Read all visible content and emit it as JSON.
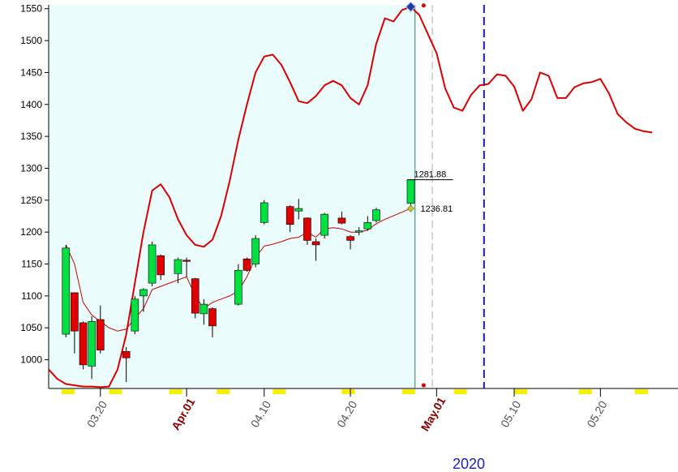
{
  "chart_data": {
    "type": "candlestick",
    "ylim": [
      955,
      1556
    ],
    "yticks": [
      1000,
      1050,
      1100,
      1150,
      1200,
      1250,
      1300,
      1350,
      1400,
      1450,
      1500,
      1550
    ],
    "x_range": [
      -1,
      72
    ],
    "x_ticks": [
      {
        "label": "03.20",
        "x": 5,
        "style": "normal"
      },
      {
        "label": "Apr.01",
        "x": 15,
        "style": "month"
      },
      {
        "label": "04.10",
        "x": 24,
        "style": "normal"
      },
      {
        "label": "04.20",
        "x": 34,
        "style": "normal"
      },
      {
        "label": "May.01",
        "x": 44,
        "style": "month"
      },
      {
        "label": "05.10",
        "x": 53,
        "style": "normal"
      },
      {
        "label": "05.20",
        "x": 63,
        "style": "normal"
      }
    ],
    "year_label": "2020",
    "shaded_range": [
      -1,
      41.5
    ],
    "current_line_x": 41.5,
    "dashed_gray_x": 43.5,
    "dashed_blue_x": 49.5,
    "candles": [
      {
        "x": 1,
        "o": 1040,
        "h": 1180,
        "l": 1035,
        "c": 1175
      },
      {
        "x": 2,
        "o": 1105,
        "h": 1105,
        "l": 1010,
        "c": 1045
      },
      {
        "x": 3,
        "o": 1058,
        "h": 1060,
        "l": 985,
        "c": 992
      },
      {
        "x": 4,
        "o": 990,
        "h": 1068,
        "l": 970,
        "c": 1060
      },
      {
        "x": 5,
        "o": 1063,
        "h": 1085,
        "l": 1010,
        "c": 1015
      },
      {
        "x": 8,
        "o": 1013,
        "h": 1020,
        "l": 965,
        "c": 1003
      },
      {
        "x": 9,
        "o": 1045,
        "h": 1100,
        "l": 1040,
        "c": 1095
      },
      {
        "x": 10,
        "o": 1100,
        "h": 1112,
        "l": 1075,
        "c": 1110
      },
      {
        "x": 11,
        "o": 1120,
        "h": 1185,
        "l": 1115,
        "c": 1180
      },
      {
        "x": 12,
        "o": 1163,
        "h": 1165,
        "l": 1125,
        "c": 1133
      },
      {
        "x": 14,
        "o": 1135,
        "h": 1160,
        "l": 1120,
        "c": 1157
      },
      {
        "x": 15,
        "o": 1156,
        "h": 1160,
        "l": 1130,
        "c": 1155
      },
      {
        "x": 16,
        "o": 1127,
        "h": 1128,
        "l": 1065,
        "c": 1073
      },
      {
        "x": 17,
        "o": 1072,
        "h": 1095,
        "l": 1055,
        "c": 1087
      },
      {
        "x": 18,
        "o": 1080,
        "h": 1082,
        "l": 1035,
        "c": 1053
      },
      {
        "x": 21,
        "o": 1087,
        "h": 1150,
        "l": 1085,
        "c": 1140
      },
      {
        "x": 22,
        "o": 1158,
        "h": 1160,
        "l": 1138,
        "c": 1140
      },
      {
        "x": 23,
        "o": 1150,
        "h": 1195,
        "l": 1145,
        "c": 1190
      },
      {
        "x": 24,
        "o": 1215,
        "h": 1250,
        "l": 1212,
        "c": 1246
      },
      {
        "x": 27,
        "o": 1240,
        "h": 1242,
        "l": 1200,
        "c": 1212
      },
      {
        "x": 28,
        "o": 1233,
        "h": 1252,
        "l": 1220,
        "c": 1237
      },
      {
        "x": 29,
        "o": 1222,
        "h": 1223,
        "l": 1180,
        "c": 1187
      },
      {
        "x": 30,
        "o": 1185,
        "h": 1190,
        "l": 1155,
        "c": 1180
      },
      {
        "x": 31,
        "o": 1195,
        "h": 1230,
        "l": 1190,
        "c": 1228
      },
      {
        "x": 33,
        "o": 1222,
        "h": 1232,
        "l": 1212,
        "c": 1214
      },
      {
        "x": 34,
        "o": 1193,
        "h": 1195,
        "l": 1173,
        "c": 1187
      },
      {
        "x": 35,
        "o": 1200,
        "h": 1208,
        "l": 1195,
        "c": 1202
      },
      {
        "x": 36,
        "o": 1205,
        "h": 1225,
        "l": 1202,
        "c": 1215
      },
      {
        "x": 37,
        "o": 1218,
        "h": 1238,
        "l": 1215,
        "c": 1235
      },
      {
        "x": 41,
        "o": 1245,
        "h": 1283,
        "l": 1242,
        "c": 1282
      }
    ],
    "ma_series": {
      "color": "#cc0000",
      "points": [
        [
          1,
          1180
        ],
        [
          2,
          1150
        ],
        [
          3,
          1090
        ],
        [
          4,
          1070
        ],
        [
          5,
          1060
        ],
        [
          6,
          1050
        ],
        [
          7,
          1045
        ],
        [
          8,
          1048
        ],
        [
          9,
          1065
        ],
        [
          10,
          1080
        ],
        [
          11,
          1110
        ],
        [
          12,
          1115
        ],
        [
          13,
          1120
        ],
        [
          14,
          1125
        ],
        [
          15,
          1130
        ],
        [
          16,
          1100
        ],
        [
          17,
          1080
        ],
        [
          18,
          1090
        ],
        [
          19,
          1095
        ],
        [
          20,
          1100
        ],
        [
          21,
          1108
        ],
        [
          22,
          1130
        ],
        [
          23,
          1160
        ],
        [
          24,
          1178
        ],
        [
          25,
          1181
        ],
        [
          26,
          1185
        ],
        [
          27,
          1190
        ],
        [
          28,
          1192
        ],
        [
          29,
          1200
        ],
        [
          30,
          1192
        ],
        [
          31,
          1205
        ],
        [
          32,
          1207
        ],
        [
          33,
          1205
        ],
        [
          34,
          1200
        ],
        [
          35,
          1200
        ],
        [
          36,
          1203
        ],
        [
          37,
          1213
        ],
        [
          38,
          1220
        ],
        [
          41,
          1237
        ]
      ]
    },
    "projection_series": {
      "color": "#dd0000",
      "points": [
        [
          -1,
          985
        ],
        [
          0,
          970
        ],
        [
          1,
          962
        ],
        [
          2,
          960
        ],
        [
          3,
          958
        ],
        [
          4,
          958
        ],
        [
          5,
          957
        ],
        [
          6,
          958
        ],
        [
          7,
          985
        ],
        [
          8,
          1040
        ],
        [
          9,
          1120
        ],
        [
          10,
          1200
        ],
        [
          11,
          1265
        ],
        [
          12,
          1275
        ],
        [
          13,
          1255
        ],
        [
          14,
          1220
        ],
        [
          15,
          1195
        ],
        [
          16,
          1180
        ],
        [
          17,
          1177
        ],
        [
          18,
          1188
        ],
        [
          19,
          1225
        ],
        [
          20,
          1280
        ],
        [
          21,
          1345
        ],
        [
          22,
          1400
        ],
        [
          23,
          1450
        ],
        [
          24,
          1475
        ],
        [
          25,
          1478
        ],
        [
          26,
          1462
        ],
        [
          27,
          1435
        ],
        [
          28,
          1405
        ],
        [
          29,
          1402
        ],
        [
          30,
          1413
        ],
        [
          31,
          1430
        ],
        [
          32,
          1437
        ],
        [
          33,
          1430
        ],
        [
          34,
          1410
        ],
        [
          35,
          1400
        ],
        [
          36,
          1430
        ],
        [
          37,
          1495
        ],
        [
          38,
          1535
        ],
        [
          39,
          1530
        ],
        [
          40,
          1548
        ],
        [
          41,
          1553
        ],
        [
          42,
          1540
        ],
        [
          43,
          1510
        ],
        [
          44,
          1480
        ],
        [
          45,
          1425
        ],
        [
          46,
          1395
        ],
        [
          47,
          1390
        ],
        [
          48,
          1415
        ],
        [
          49,
          1430
        ],
        [
          50,
          1432
        ],
        [
          51,
          1447
        ],
        [
          52,
          1445
        ],
        [
          53,
          1428
        ],
        [
          54,
          1390
        ],
        [
          55,
          1408
        ],
        [
          56,
          1450
        ],
        [
          57,
          1445
        ],
        [
          58,
          1410
        ],
        [
          59,
          1410
        ],
        [
          60,
          1427
        ],
        [
          61,
          1433
        ],
        [
          62,
          1435
        ],
        [
          63,
          1440
        ],
        [
          64,
          1417
        ],
        [
          65,
          1385
        ],
        [
          66,
          1372
        ],
        [
          67,
          1362
        ],
        [
          68,
          1358
        ],
        [
          69,
          1356
        ]
      ]
    },
    "annotations": [
      {
        "text": "1281.88",
        "x": 41,
        "y": 1282
      },
      {
        "text": "1236.81",
        "x": 41,
        "y": 1236.81
      }
    ],
    "markers": [
      {
        "type": "diamond",
        "x": 41,
        "y": 1553,
        "color": "#1a3fa0"
      },
      {
        "type": "dot",
        "x": 42.5,
        "y": 1555,
        "color": "#dd0000"
      },
      {
        "type": "dot",
        "x": 42.5,
        "y": 960,
        "color": "#dd0000"
      },
      {
        "type": "diamond-small",
        "x": 41,
        "y": 1237,
        "color": "#c8c832"
      }
    ],
    "yellow_blocks_x": [
      0.5,
      6,
      13,
      18.5,
      25,
      33,
      40,
      46,
      53,
      60.5,
      67
    ]
  }
}
